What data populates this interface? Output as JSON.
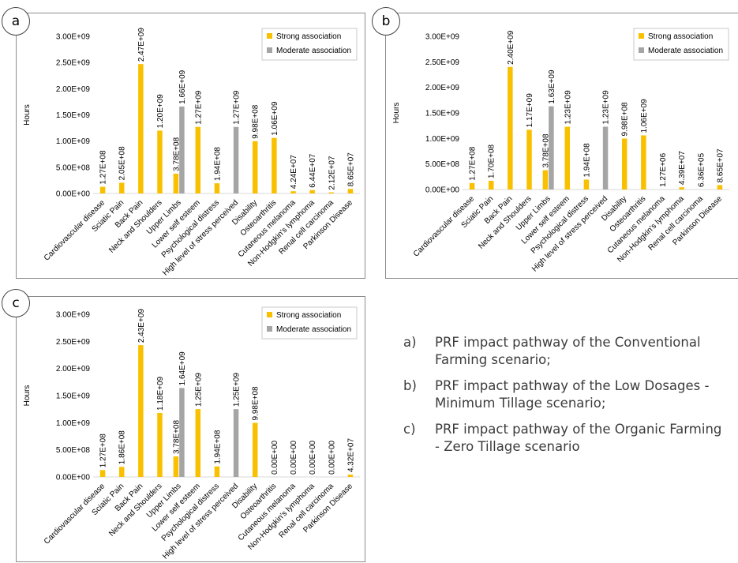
{
  "chart_data": [
    {
      "panel": "a",
      "type": "bar",
      "ylabel": "Hours",
      "ylim": [
        0,
        3000000000
      ],
      "yticks": [
        "0.00E+00",
        "5.00E+08",
        "1.00E+09",
        "1.50E+09",
        "2.00E+09",
        "2.50E+09",
        "3.00E+09"
      ],
      "legend": "top-right",
      "categories": [
        "Cardiovascular disease",
        "Sciatic Pain",
        "Back Pain",
        "Neck and Shoulders",
        "Upper Limbs",
        "Lower self esteem",
        "Psychological distress",
        "High level of stress perceived",
        "Disability",
        "Osteoarthritis",
        "Cutaneous melanoma",
        "Non-Hodgkin's lymphoma",
        "Renal cell carcinoma",
        "Parkinson Disease"
      ],
      "series": [
        {
          "name": "Strong association",
          "color": "#f9c000",
          "values": [
            127000000,
            205000000,
            2470000000,
            1200000000,
            378000000,
            1270000000,
            194000000,
            null,
            998000000,
            1060000000,
            42400000,
            64400000,
            21200000,
            86500000
          ],
          "labels": [
            "1.27E+08",
            "2.05E+08",
            "2.47E+09",
            "1.20E+09",
            "3.78E+08",
            "1.27E+09",
            "1.94E+08",
            "",
            "9.98E+08",
            "1.06E+09",
            "4.24E+07",
            "6.44E+07",
            "2.12E+07",
            "8.65E+07"
          ]
        },
        {
          "name": "Moderate association",
          "color": "#a5a5a5",
          "values": [
            null,
            null,
            null,
            null,
            1660000000,
            null,
            null,
            1270000000,
            null,
            null,
            null,
            null,
            null,
            null
          ],
          "labels": [
            "",
            "",
            "",
            "",
            "1.66E+09",
            "",
            "",
            "1.27E+09",
            "",
            "",
            "",
            "",
            "",
            ""
          ]
        }
      ]
    },
    {
      "panel": "b",
      "type": "bar",
      "ylabel": "Hours",
      "ylim": [
        0,
        3000000000
      ],
      "yticks": [
        "0.00E+00",
        "5.00E+08",
        "1.00E+09",
        "1.50E+09",
        "2.00E+09",
        "2.50E+09",
        "3.00E+09"
      ],
      "legend": "top-right",
      "categories": [
        "Cardiovascular disease",
        "Sciatic Pain",
        "Back Pain",
        "Neck and Shoulders",
        "Upper Limbs",
        "Lower self esteem",
        "Psychological distress",
        "High level of stress perceived",
        "Disability",
        "Osteoarthritis",
        "Cutaneous melanoma",
        "Non-Hodgkin's lymphoma",
        "Renal cell carcinoma",
        "Parkinson Disease"
      ],
      "series": [
        {
          "name": "Strong association",
          "color": "#f9c000",
          "values": [
            127000000,
            170000000,
            2400000000,
            1170000000,
            378000000,
            1230000000,
            194000000,
            null,
            998000000,
            1060000000,
            1270000,
            43900000,
            636000,
            86500000
          ],
          "labels": [
            "1.27E+08",
            "1.70E+08",
            "2.40E+09",
            "1.17E+09",
            "3.78E+08",
            "1.23E+09",
            "1.94E+08",
            "",
            "9.98E+08",
            "1.06E+09",
            "1.27E+06",
            "4.39E+07",
            "6.36E+05",
            "8.65E+07"
          ]
        },
        {
          "name": "Moderate association",
          "color": "#a5a5a5",
          "values": [
            null,
            null,
            null,
            null,
            1630000000,
            null,
            null,
            1230000000,
            null,
            null,
            null,
            null,
            null,
            null
          ],
          "labels": [
            "",
            "",
            "",
            "",
            "1.63E+09",
            "",
            "",
            "1.23E+09",
            "",
            "",
            "",
            "",
            "",
            ""
          ]
        }
      ]
    },
    {
      "panel": "c",
      "type": "bar",
      "ylabel": "Hours",
      "ylim": [
        0,
        3000000000
      ],
      "yticks": [
        "0.00E+00",
        "5.00E+08",
        "1.00E+09",
        "1.50E+09",
        "2.00E+09",
        "2.50E+09",
        "3.00E+09"
      ],
      "legend": "top-right",
      "categories": [
        "Cardiovascular disease",
        "Sciatic Pain",
        "Back Pain",
        "Neck and Shoulders",
        "Upper Limbs",
        "Lower self esteem",
        "Psychological distress",
        "High level of stress perceived",
        "Disability",
        "Osteoarthritis",
        "Cutaneous melanoma",
        "Non-Hodgkin's lymphoma",
        "Renal cell carcinoma",
        "Parkinson Disease"
      ],
      "series": [
        {
          "name": "Strong association",
          "color": "#f9c000",
          "values": [
            127000000,
            186000000,
            2430000000,
            1180000000,
            378000000,
            1250000000,
            194000000,
            null,
            998000000,
            0,
            0,
            0,
            0,
            43200000
          ],
          "labels": [
            "1.27E+08",
            "1.86E+08",
            "2.43E+09",
            "1.18E+09",
            "3.78E+08",
            "1.25E+09",
            "1.94E+08",
            "",
            "9.98E+08",
            "0.00E+00",
            "0.00E+00",
            "0.00E+00",
            "0.00E+00",
            "4.32E+07"
          ]
        },
        {
          "name": "Moderate association",
          "color": "#a5a5a5",
          "values": [
            null,
            null,
            null,
            null,
            1640000000,
            null,
            null,
            1250000000,
            null,
            null,
            null,
            null,
            null,
            null
          ],
          "labels": [
            "",
            "",
            "",
            "",
            "1.64E+09",
            "",
            "",
            "1.25E+09",
            "",
            "",
            "",
            "",
            "",
            ""
          ]
        }
      ]
    }
  ],
  "captions": [
    {
      "label": "a)",
      "text": "PRF impact pathway of the Conventional Farming scenario;"
    },
    {
      "label": "b)",
      "text": "PRF impact pathway of the Low Dosages - Minimum Tillage scenario;"
    },
    {
      "label": "c)",
      "text": "PRF impact pathway of the Organic Farming - Zero Tillage scenario"
    }
  ]
}
